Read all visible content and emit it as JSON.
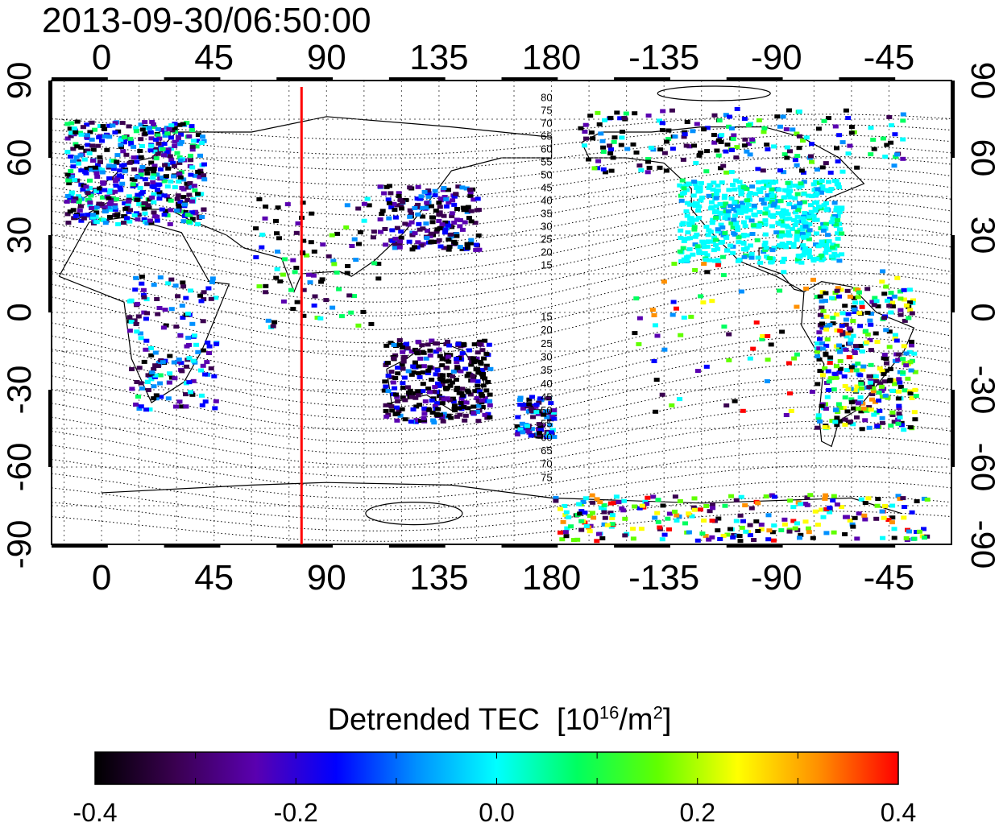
{
  "title": "2013-09-30/06:50:00",
  "map": {
    "x_ticks": [
      "0",
      "45",
      "90",
      "135",
      "180",
      "-135",
      "-90",
      "-45"
    ],
    "y_ticks": [
      "90",
      "60",
      "30",
      "0",
      "-30",
      "-60",
      "-90"
    ],
    "marker_longitude": 80,
    "contour_labels_north": [
      "80",
      "75",
      "70",
      "65",
      "60",
      "55",
      "50",
      "45",
      "40",
      "35",
      "30",
      "25",
      "20",
      "15"
    ],
    "contour_labels_south": [
      "15",
      "20",
      "25",
      "30",
      "35",
      "40",
      "45",
      "50",
      "55",
      "60",
      "65",
      "70",
      "75"
    ]
  },
  "colorbar": {
    "title_text": "Detrended TEC",
    "unit_base": "[10",
    "unit_exp": "16",
    "unit_mid": "/m",
    "unit_exp2": "2",
    "unit_end": "]",
    "ticks": [
      "-0.4",
      "-0.2",
      "0.0",
      "0.2",
      "0.4"
    ],
    "min": -0.4,
    "max": 0.4,
    "colors": [
      "#000000",
      "#3a0050",
      "#5a00b0",
      "#0000ff",
      "#0090ff",
      "#00ffff",
      "#00ff60",
      "#60ff00",
      "#ffff00",
      "#ff9000",
      "#ff0000"
    ]
  }
}
